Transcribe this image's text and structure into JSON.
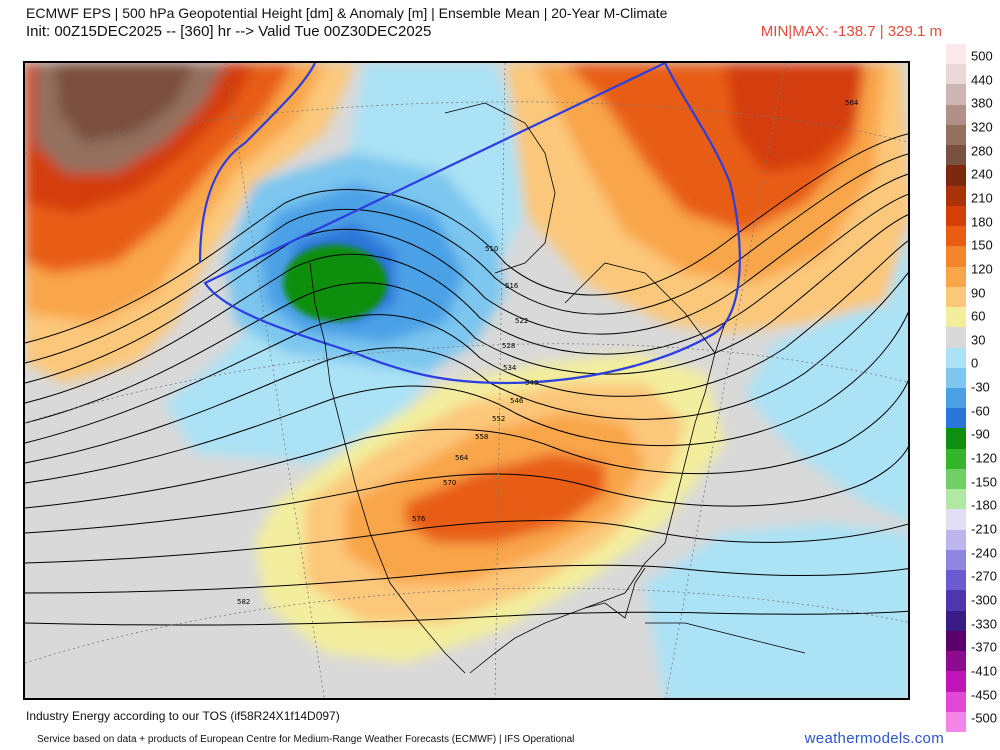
{
  "header": {
    "line1": "ECMWF EPS | 500 hPa Geopotential Height [dm] & Anomaly [m] | Ensemble Mean | 20-Year M-Climate",
    "line2": "Init: 00Z15DEC2025 -- [360] hr --> Valid Tue 00Z30DEC2025",
    "minmax": "MIN|MAX: -138.7 | 329.1 m"
  },
  "colorbar": {
    "labels": [
      "500",
      "440",
      "380",
      "320",
      "280",
      "240",
      "210",
      "180",
      "150",
      "120",
      "90",
      "60",
      "30",
      "0",
      "-30",
      "-60",
      "-90",
      "-120",
      "-150",
      "-180",
      "-210",
      "-240",
      "-270",
      "-300",
      "-330",
      "-370",
      "-410",
      "-450",
      "-500"
    ],
    "colors": [
      "#fbe8ea",
      "#ead7d7",
      "#cdb6b1",
      "#b09087",
      "#94705f",
      "#7a503e",
      "#7b2a0f",
      "#ab3309",
      "#d43e09",
      "#e85d12",
      "#f3852a",
      "#f9a54a",
      "#fbc77a",
      "#f3ee9e",
      "#d9d9d9",
      "#abe2f5",
      "#7cc6ef",
      "#4ca1e6",
      "#2a75d9",
      "#0e8f10",
      "#33b52c",
      "#70d065",
      "#b0e8a4",
      "#e1def5",
      "#bdb6ee",
      "#8f86e2",
      "#6a5cd0",
      "#4e36ae",
      "#3a1c86",
      "#5a006b",
      "#8d0b8f",
      "#c015b6",
      "#e248d5",
      "#f285e6"
    ]
  },
  "contour_labels": [
    "510",
    "516",
    "522",
    "528",
    "534",
    "540",
    "546",
    "552",
    "558",
    "564",
    "570",
    "576",
    "582",
    "564"
  ],
  "footer": {
    "attribution": "Industry Energy according to our TOS (if58R24X1f14D097)",
    "service": "Service based on data + products of European Centre for Medium-Range Weather Forecasts (ECMWF) | IFS Operational",
    "brand": "weathermodels.com"
  }
}
